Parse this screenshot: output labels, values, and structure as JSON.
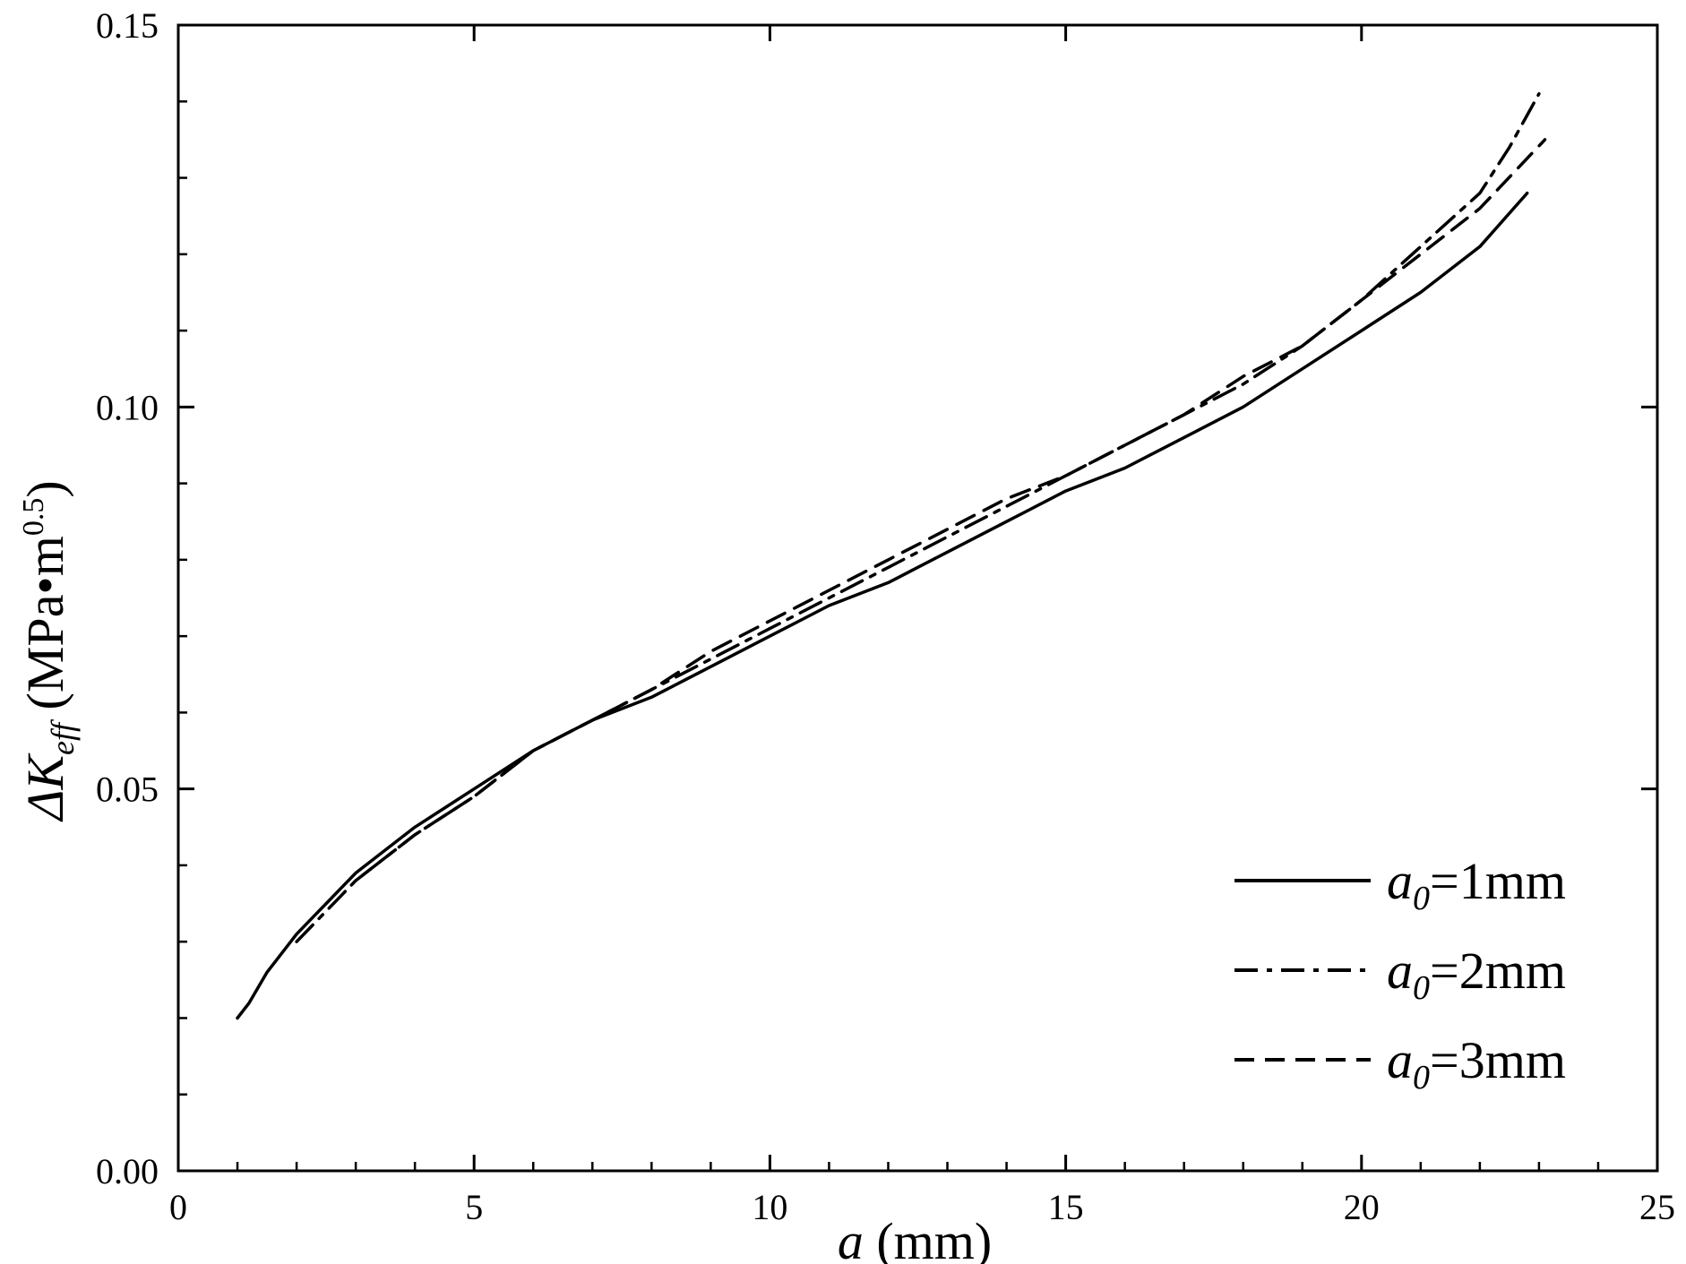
{
  "chart_data": {
    "type": "line",
    "title": "",
    "xlabel": {
      "var": "a",
      "unit": " (mm)"
    },
    "ylabel": {
      "prefix": "ΔK",
      "sub": "eff",
      "unit": " (MPa•m",
      "sup": "0.5",
      "close": ")"
    },
    "xlim": [
      0,
      25
    ],
    "ylim": [
      0,
      0.15
    ],
    "x_ticks": [
      0,
      5,
      10,
      15,
      20,
      25
    ],
    "x_tick_labels": [
      "0",
      "5",
      "10",
      "15",
      "20",
      "25"
    ],
    "y_ticks": [
      0,
      0.05,
      0.1,
      0.15
    ],
    "y_tick_labels": [
      "0.00",
      "0.05",
      "0.10",
      "0.15"
    ],
    "grid": false,
    "legend_position": "bottom-right",
    "series": [
      {
        "name": "a0=1mm",
        "label_var": "a",
        "label_sub": "0",
        "label_rest": "=1mm",
        "dash": "solid",
        "color": "#000000",
        "x": [
          1.0,
          1.2,
          1.5,
          2.0,
          2.5,
          3.0,
          3.5,
          4.0,
          5.0,
          6.0,
          7.0,
          8.0,
          9.0,
          10.0,
          11.0,
          12.0,
          13.0,
          14.0,
          15.0,
          16.0,
          17.0,
          18.0,
          19.0,
          20.0,
          21.0,
          22.0,
          22.8
        ],
        "y": [
          0.02,
          0.022,
          0.026,
          0.031,
          0.035,
          0.039,
          0.042,
          0.045,
          0.05,
          0.055,
          0.059,
          0.062,
          0.066,
          0.07,
          0.074,
          0.077,
          0.081,
          0.085,
          0.089,
          0.092,
          0.096,
          0.1,
          0.105,
          0.11,
          0.115,
          0.121,
          0.128
        ]
      },
      {
        "name": "a0=2mm",
        "label_var": "a",
        "label_sub": "0",
        "label_rest": "=2mm",
        "dash": "dashdot",
        "color": "#000000",
        "x": [
          2.0,
          2.5,
          3.0,
          3.5,
          4.0,
          5.0,
          6.0,
          7.0,
          8.0,
          9.0,
          10.0,
          11.0,
          12.0,
          13.0,
          14.0,
          15.0,
          16.0,
          17.0,
          18.0,
          19.0,
          20.0,
          21.0,
          22.0,
          22.5,
          23.0
        ],
        "y": [
          0.03,
          0.034,
          0.038,
          0.041,
          0.044,
          0.049,
          0.055,
          0.059,
          0.063,
          0.067,
          0.071,
          0.075,
          0.079,
          0.083,
          0.087,
          0.091,
          0.095,
          0.099,
          0.103,
          0.108,
          0.114,
          0.121,
          0.128,
          0.134,
          0.141
        ]
      },
      {
        "name": "a0=3mm",
        "label_var": "a",
        "label_sub": "0",
        "label_rest": "=3mm",
        "dash": "dashed",
        "color": "#000000",
        "x": [
          3.0,
          3.5,
          4.0,
          5.0,
          6.0,
          7.0,
          8.0,
          9.0,
          10.0,
          11.0,
          12.0,
          13.0,
          14.0,
          15.0,
          16.0,
          17.0,
          18.0,
          19.0,
          20.0,
          21.0,
          22.0,
          23.1
        ],
        "y": [
          0.038,
          0.041,
          0.044,
          0.049,
          0.055,
          0.059,
          0.063,
          0.068,
          0.072,
          0.076,
          0.08,
          0.084,
          0.088,
          0.091,
          0.095,
          0.099,
          0.104,
          0.108,
          0.114,
          0.12,
          0.126,
          0.135
        ]
      }
    ]
  }
}
